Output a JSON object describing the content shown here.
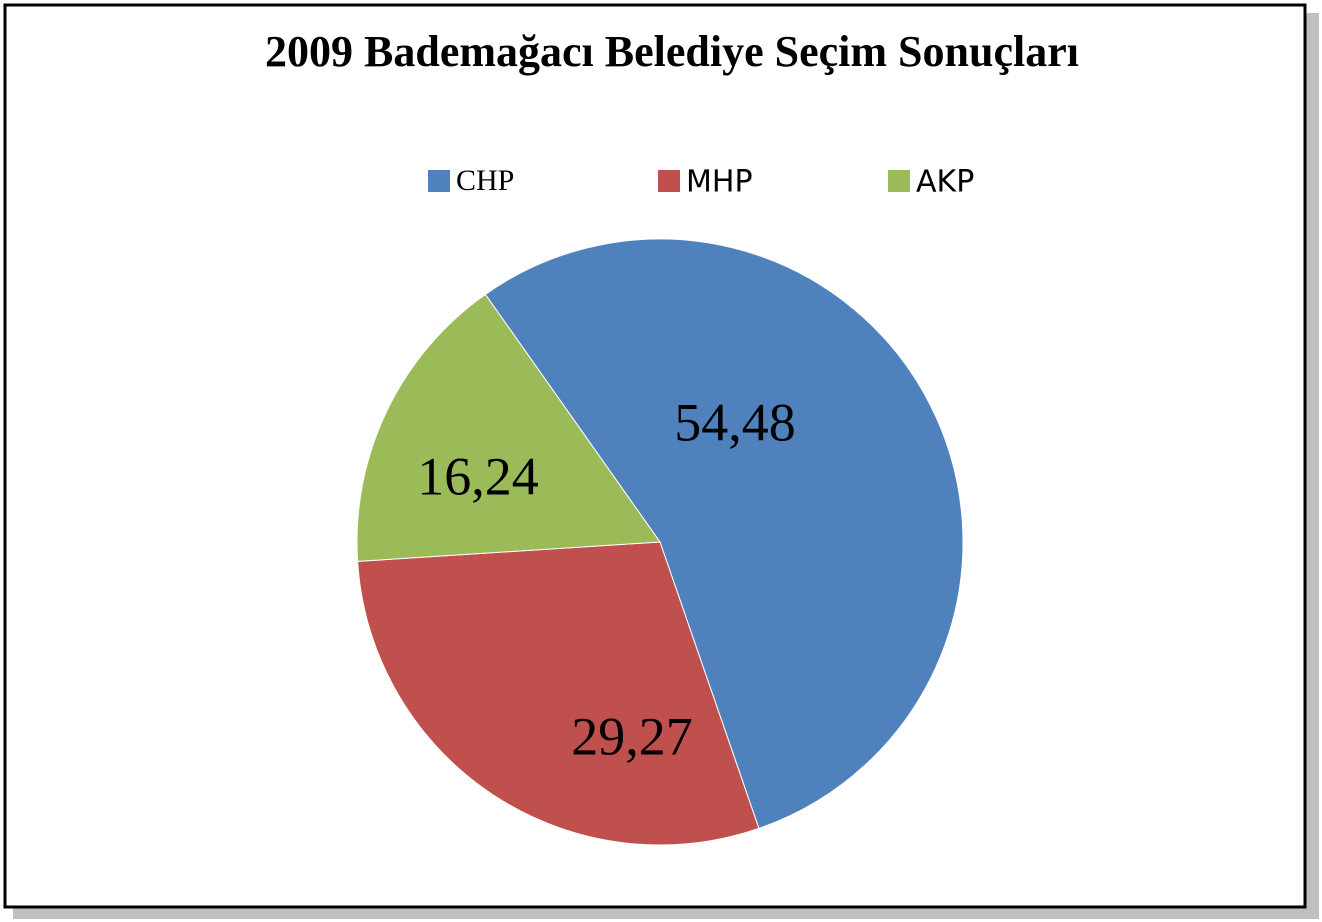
{
  "chart_data": {
    "type": "pie",
    "title": "2009 Bademağacı Belediye Seçim Sonuçları",
    "categories": [
      "CHP",
      "MHP",
      "AKP"
    ],
    "values": [
      54.48,
      29.27,
      16.24
    ],
    "value_labels": [
      "54,48",
      "29,27",
      "16,24"
    ],
    "colors": [
      "#4f81bd",
      "#c0504d",
      "#9bbb59"
    ],
    "legend": "top"
  }
}
